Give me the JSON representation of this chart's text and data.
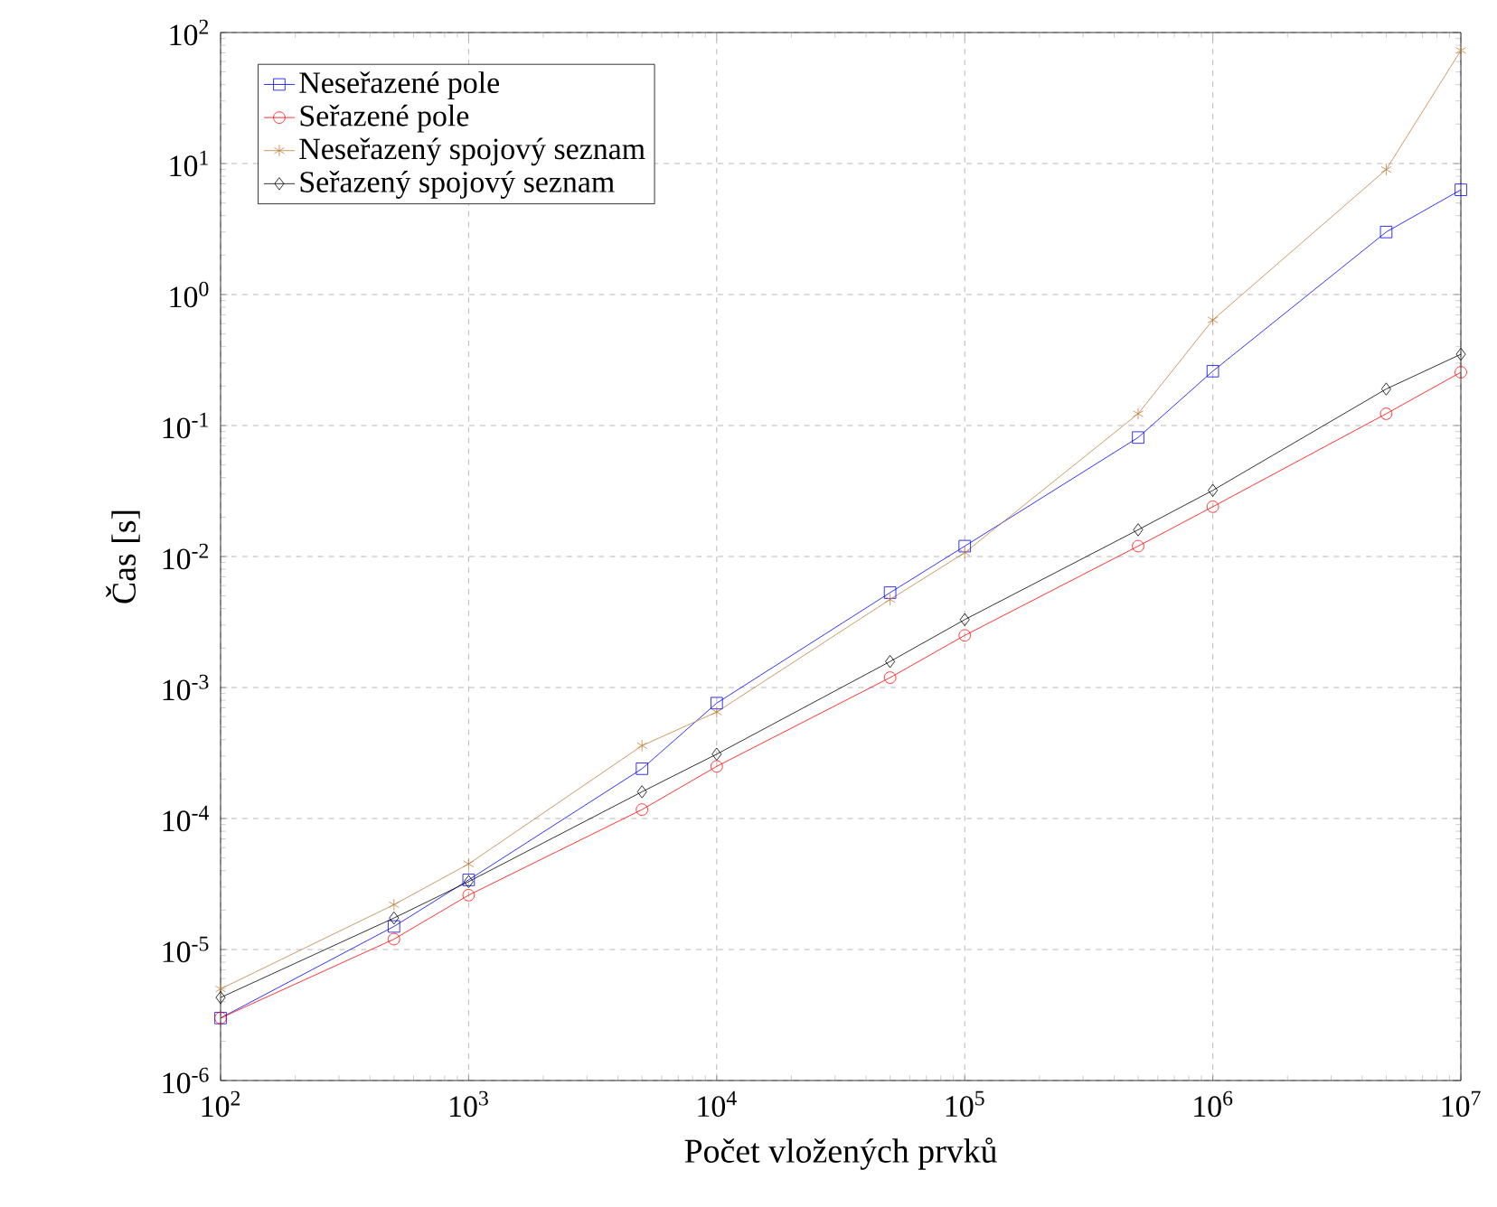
{
  "chart_data": {
    "type": "line",
    "xlabel": "Počet vložených prvků",
    "ylabel": "Čas [s]",
    "log": "xy",
    "grid": true,
    "legend": "top left",
    "x": [
      100,
      500,
      1000,
      5000,
      10000,
      50000,
      100000,
      500000,
      1000000,
      5000000,
      10000000
    ],
    "xlim": [
      100,
      10000000
    ],
    "xticks": [
      {
        "value": 100,
        "label": "10$^{2}$"
      },
      {
        "value": 1000,
        "label": "10$^{3}$"
      },
      {
        "value": 10000,
        "label": "10$^{4}$"
      },
      {
        "value": 100000,
        "label": "10$^{5}$"
      },
      {
        "value": 1000000,
        "label": "10$^{6}$"
      },
      {
        "value": 10000000,
        "label": "10$^{7}$"
      }
    ],
    "ylim": [
      1e-06,
      100
    ],
    "yticks": [
      {
        "value": 1e-06,
        "label": "10$^{-6}$"
      },
      {
        "value": 1e-05,
        "label": "10$^{-5}$"
      },
      {
        "value": 0.0001,
        "label": "10$^{-4}$"
      },
      {
        "value": 0.001,
        "label": "10$^{-3}$"
      },
      {
        "value": 0.01,
        "label": "10$^{-2}$"
      },
      {
        "value": 0.1,
        "label": "10$^{-1}$"
      },
      {
        "value": 1,
        "label": "10$^{0}$"
      },
      {
        "value": 10,
        "label": "10$^{1}$"
      },
      {
        "value": 100,
        "label": "10$^{2}$"
      }
    ],
    "series": [
      {
        "name": "Neseřazené pole",
        "color": "#0000ff",
        "marker": "square",
        "values": [
          3e-06,
          1.5e-05,
          3.4e-05,
          0.00024,
          0.00076,
          0.0053,
          0.012,
          0.081,
          0.26,
          3.0,
          6.3
        ]
      },
      {
        "name": "Seřazené pole",
        "color": "#ff0000",
        "marker": "circle",
        "values": [
          3e-06,
          1.2e-05,
          2.6e-05,
          0.000117,
          0.00025,
          0.00119,
          0.0025,
          0.012,
          0.024,
          0.123,
          0.255
        ]
      },
      {
        "name": "Neseřazený spojový seznam",
        "color": "#bf8040",
        "marker": "cross",
        "values": [
          5e-06,
          2.2e-05,
          4.5e-05,
          0.00036,
          0.00065,
          0.0047,
          0.0107,
          0.123,
          0.64,
          9.0,
          73
        ]
      },
      {
        "name": "Seřazený spojový seznam",
        "color": "#000000",
        "marker": "diamond",
        "values": [
          4.3e-06,
          1.74e-05,
          3.3e-05,
          0.00016,
          0.00031,
          0.00158,
          0.0033,
          0.016,
          0.032,
          0.19,
          0.35
        ]
      }
    ]
  }
}
